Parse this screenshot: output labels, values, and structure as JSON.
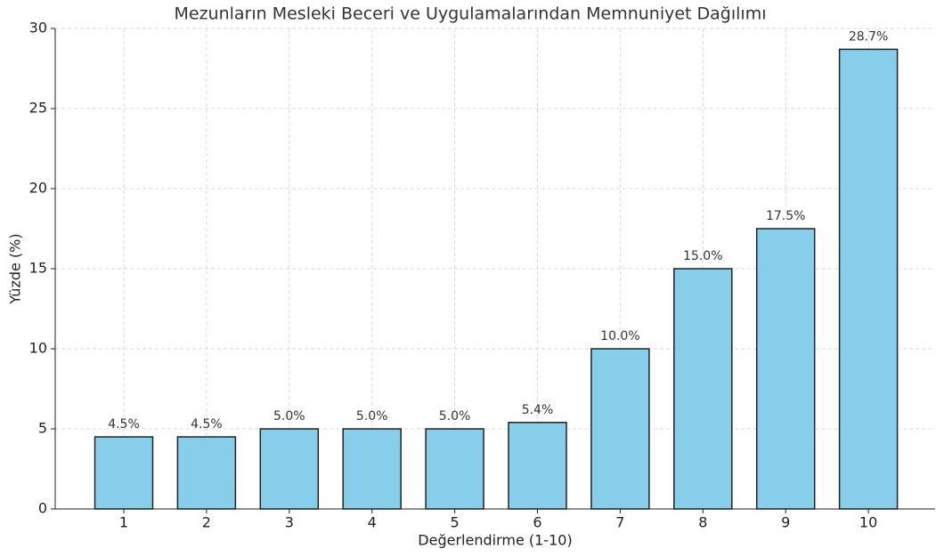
{
  "chart_data": {
    "type": "bar",
    "title": "Mezunların Mesleki Beceri ve Uygulamalarından Memnuniyet Dağılımı",
    "xlabel": "Değerlendirme (1-10)",
    "ylabel": "Yüzde (%)",
    "categories": [
      "1",
      "2",
      "3",
      "4",
      "5",
      "6",
      "7",
      "8",
      "9",
      "10"
    ],
    "values": [
      4.5,
      4.5,
      5.0,
      5.0,
      5.0,
      5.4,
      10.0,
      15.0,
      17.5,
      28.7
    ],
    "value_labels": [
      "4.5%",
      "4.5%",
      "5.0%",
      "5.0%",
      "5.0%",
      "5.4%",
      "10.0%",
      "15.0%",
      "17.5%",
      "28.7%"
    ],
    "color": "#87ceeb",
    "ylim": [
      0,
      30
    ],
    "yticks": [
      0,
      5,
      10,
      15,
      20,
      25,
      30
    ],
    "grid": true
  }
}
